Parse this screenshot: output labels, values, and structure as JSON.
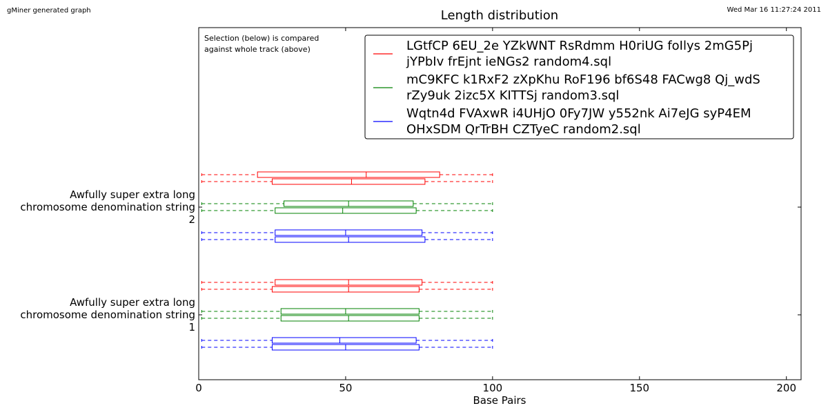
{
  "header": {
    "left": "gMiner generated graph",
    "right": "Wed Mar 16 11:27:24 2011"
  },
  "chart_data": {
    "type": "boxplot",
    "orientation": "horizontal",
    "title": "Length distribution",
    "xlabel": "Base Pairs",
    "xlim": [
      0,
      205
    ],
    "xticks": [
      0,
      50,
      100,
      150,
      200
    ],
    "annotation": [
      "Selection (below) is compared",
      "against whole track (above)"
    ],
    "legend_position": "top-right",
    "colors": {
      "red": "#ff0000",
      "green": "#008000",
      "blue": "#0000ff"
    },
    "series": [
      {
        "name_lines": [
          "LGtfCP 6EU_2e YZkWNT RsRdmm H0riUG foIlys 2mG5Pj",
          "jYPbIv frEjnt ieNGs2 random4.sql"
        ],
        "color": "#ff0000"
      },
      {
        "name_lines": [
          "mC9KFC k1RxF2 zXpKhu RoF196 bf6S48 FACwg8 Qj_wdS",
          "rZy9uk 2izc5X KITTSj random3.sql"
        ],
        "color": "#008000"
      },
      {
        "name_lines": [
          "Wqtn4d FVAxwR i4UHjO 0Fy7JW y552nk Ai7eJG syP4EM",
          "OHxSDM QrTrBH CZTyeC random2.sql"
        ],
        "color": "#0000ff"
      }
    ],
    "categories": [
      {
        "label_lines": [
          "Awfully super extra long",
          "chromosome denomination string",
          "1"
        ],
        "boxes": [
          {
            "series": 0,
            "part": "whole",
            "min": 1,
            "q1": 26,
            "median": 51,
            "q3": 76,
            "max": 100
          },
          {
            "series": 0,
            "part": "selection",
            "min": 1,
            "q1": 25,
            "median": 51,
            "q3": 75,
            "max": 100
          },
          {
            "series": 1,
            "part": "whole",
            "min": 1,
            "q1": 28,
            "median": 50,
            "q3": 75,
            "max": 100
          },
          {
            "series": 1,
            "part": "selection",
            "min": 1,
            "q1": 28,
            "median": 51,
            "q3": 75,
            "max": 100
          },
          {
            "series": 2,
            "part": "whole",
            "min": 1,
            "q1": 25,
            "median": 48,
            "q3": 74,
            "max": 100
          },
          {
            "series": 2,
            "part": "selection",
            "min": 1,
            "q1": 25,
            "median": 50,
            "q3": 75,
            "max": 100
          }
        ]
      },
      {
        "label_lines": [
          "Awfully super extra long",
          "chromosome denomination string",
          "2"
        ],
        "boxes": [
          {
            "series": 0,
            "part": "whole",
            "min": 1,
            "q1": 20,
            "median": 57,
            "q3": 82,
            "max": 100
          },
          {
            "series": 0,
            "part": "selection",
            "min": 1,
            "q1": 25,
            "median": 52,
            "q3": 77,
            "max": 100
          },
          {
            "series": 1,
            "part": "whole",
            "min": 1,
            "q1": 29,
            "median": 51,
            "q3": 73,
            "max": 100
          },
          {
            "series": 1,
            "part": "selection",
            "min": 1,
            "q1": 26,
            "median": 49,
            "q3": 74,
            "max": 100
          },
          {
            "series": 2,
            "part": "whole",
            "min": 1,
            "q1": 26,
            "median": 50,
            "q3": 76,
            "max": 100
          },
          {
            "series": 2,
            "part": "selection",
            "min": 1,
            "q1": 26,
            "median": 51,
            "q3": 77,
            "max": 100
          }
        ]
      }
    ]
  }
}
